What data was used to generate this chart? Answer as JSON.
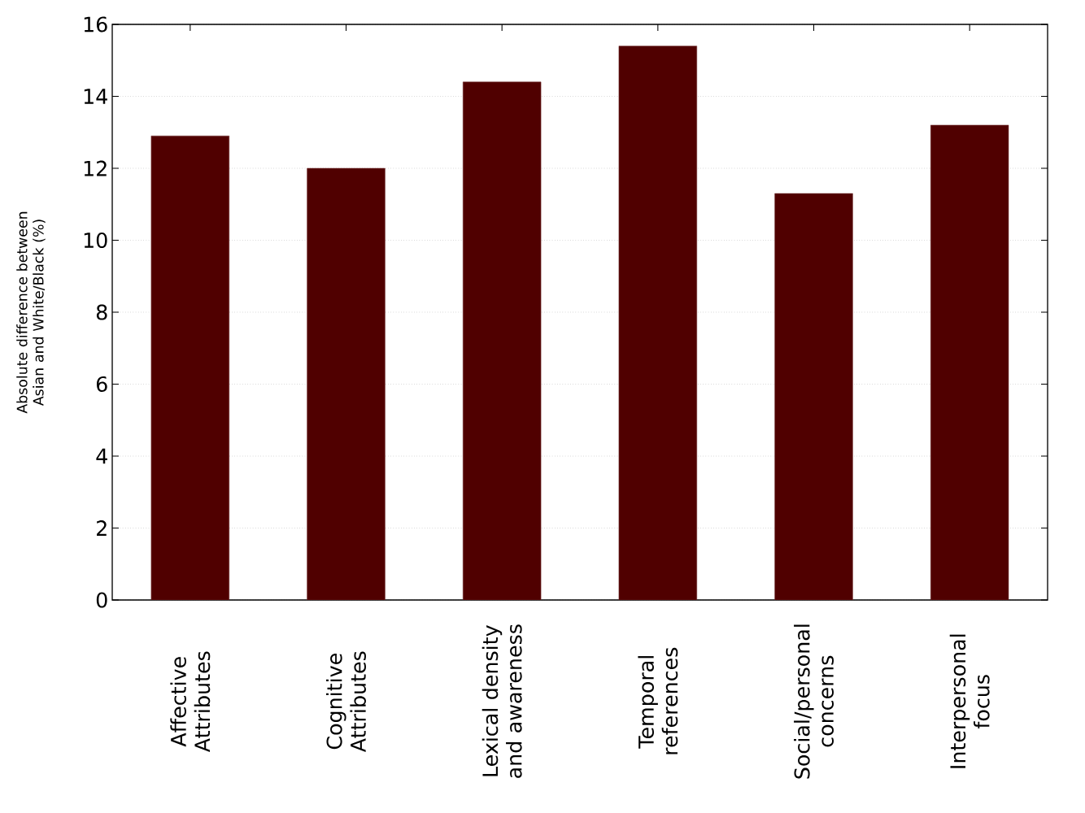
{
  "chart_data": {
    "type": "bar",
    "ylabel": "Absolute difference between Asian and White/Black (%)",
    "categories": [
      "Affective Attributes",
      "Cognitive Attributes",
      "Lexical density and awareness",
      "Temporal references",
      "Social/personal concerns",
      "Interpersonal focus"
    ],
    "values": [
      12.9,
      12.0,
      14.4,
      15.4,
      11.3,
      13.2
    ],
    "color": "#500000",
    "ylim": [
      0,
      16
    ],
    "yticks": [
      0,
      2,
      4,
      6,
      8,
      10,
      12,
      14,
      16
    ],
    "grid": "y"
  }
}
